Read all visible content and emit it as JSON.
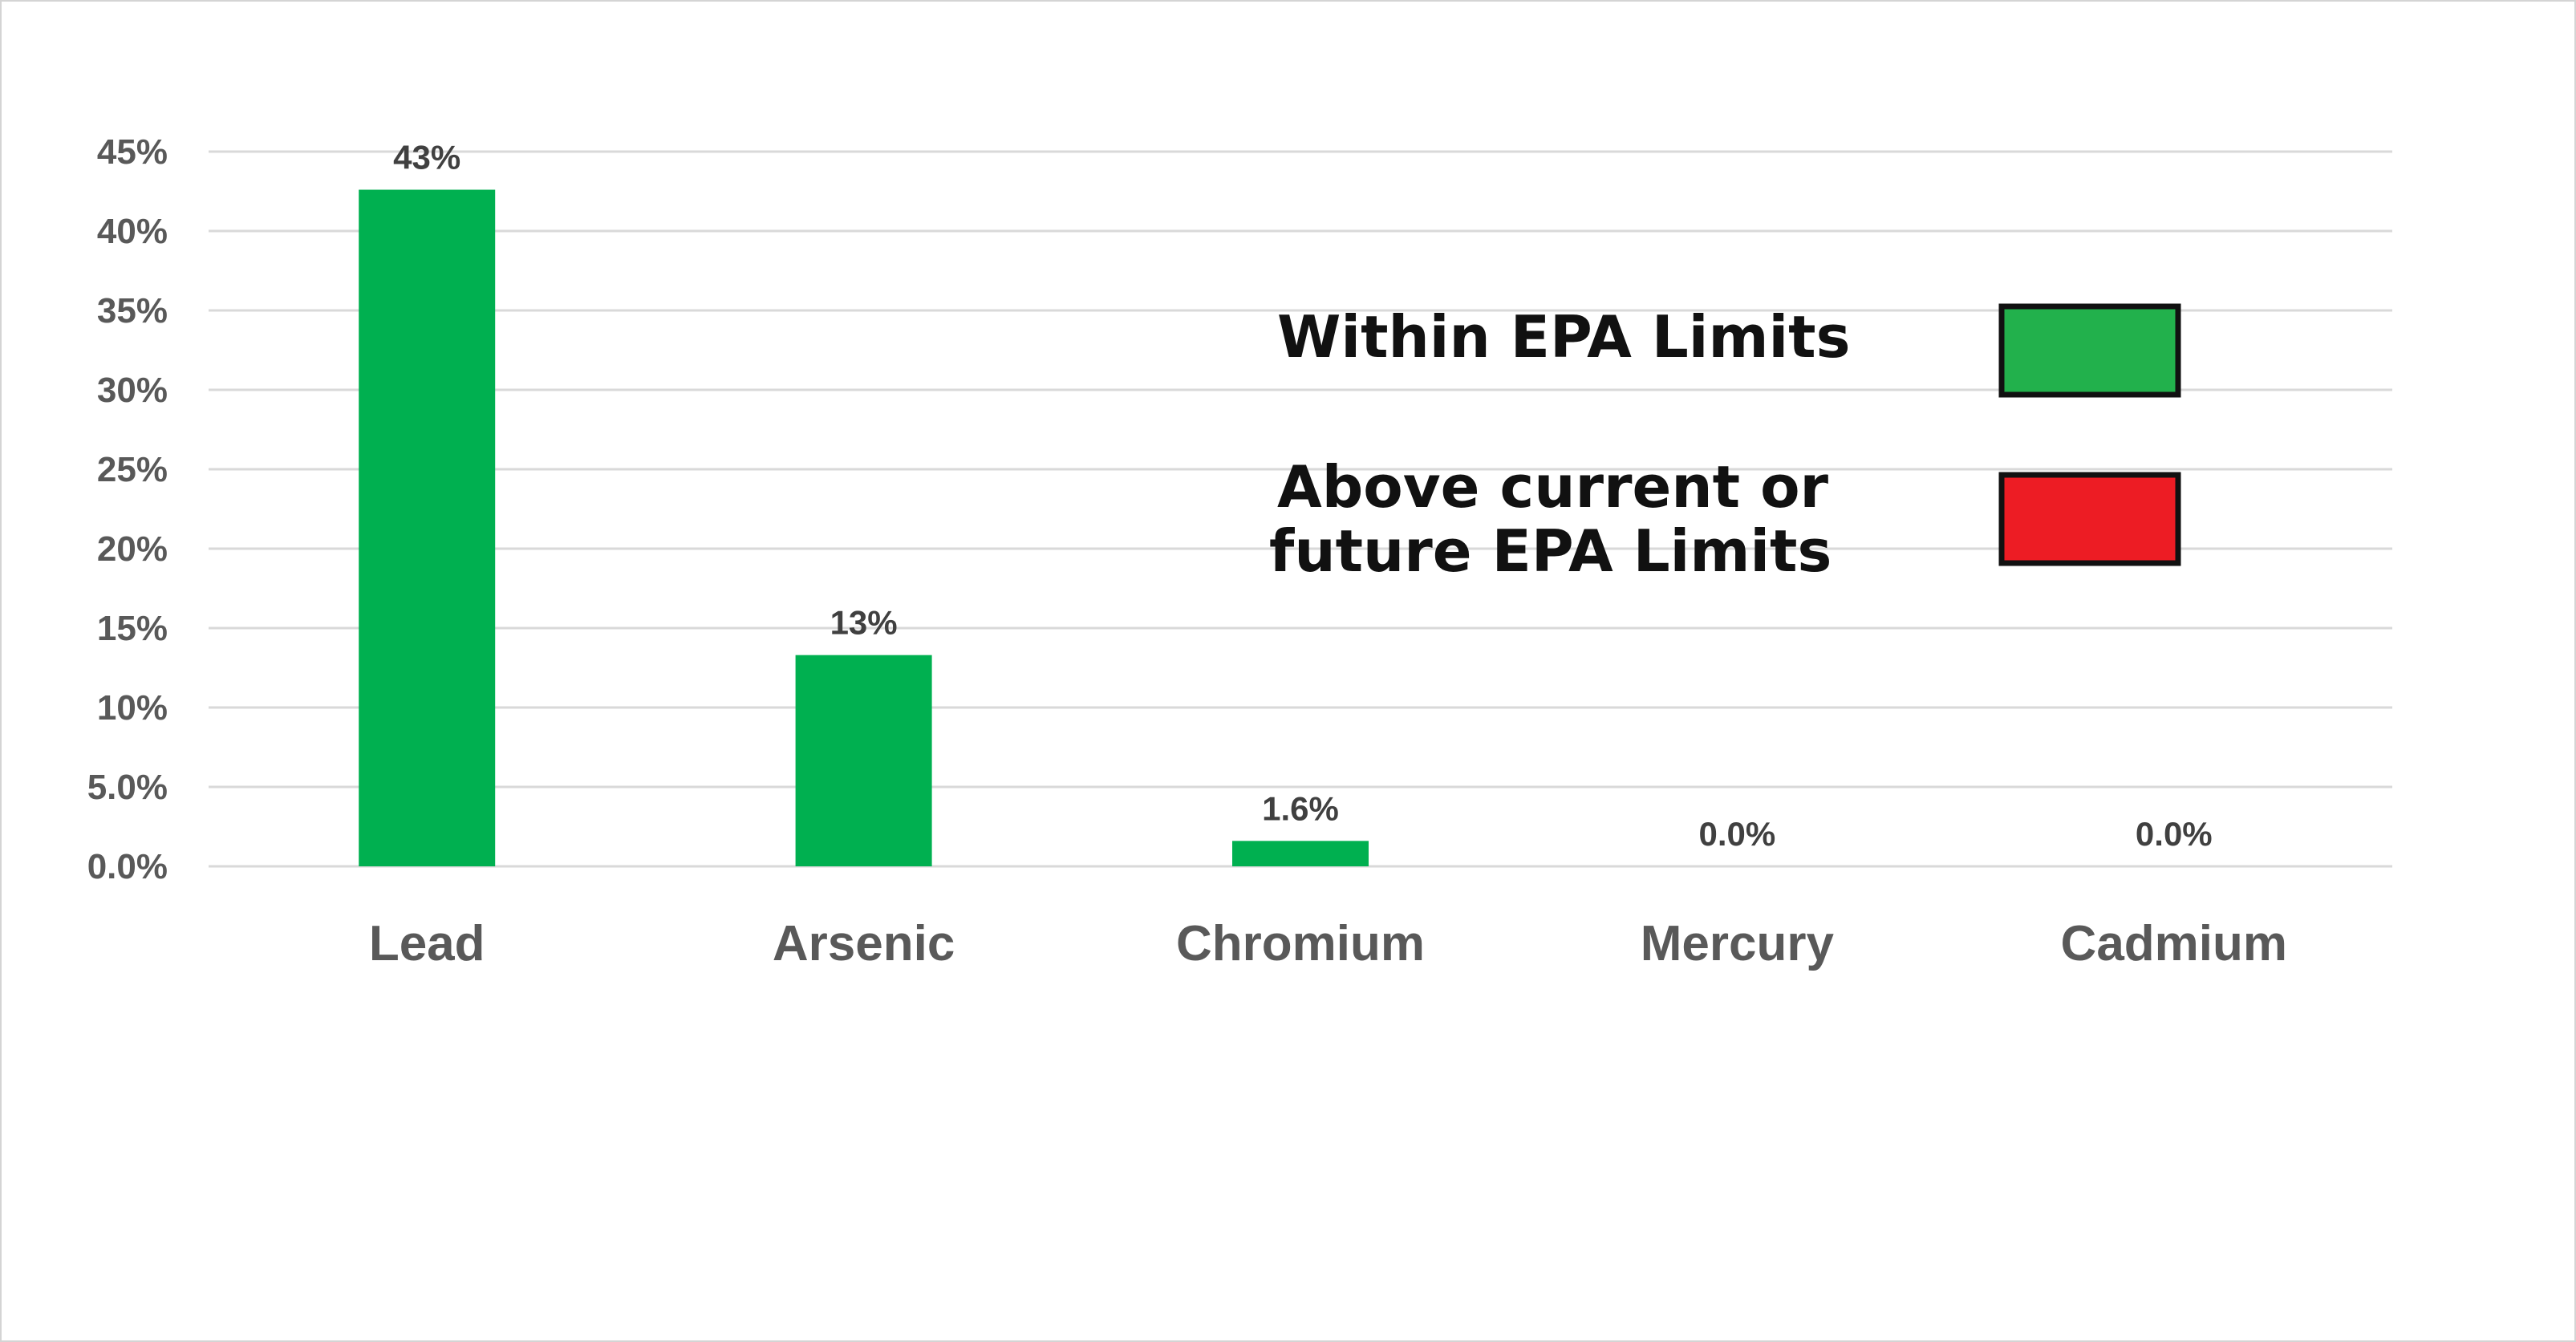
{
  "chart_data": {
    "type": "bar",
    "categories": [
      "Lead",
      "Arsenic",
      "Chromium",
      "Mercury",
      "Cadmium"
    ],
    "values": [
      42.6,
      13.3,
      1.6,
      0.0,
      0.0
    ],
    "data_labels": [
      "43%",
      "13%",
      "1.6%",
      "0.0%",
      "0.0%"
    ],
    "ylim": [
      0,
      45
    ],
    "yticks": [
      0,
      5,
      10,
      15,
      20,
      25,
      30,
      35,
      40,
      45
    ],
    "ytick_labels": [
      "0.0%",
      "5.0%",
      "10%",
      "15%",
      "20%",
      "25%",
      "30%",
      "35%",
      "40%",
      "45%"
    ],
    "grid": true,
    "bar_color": "#00b050",
    "legend": {
      "placement": "center-right",
      "entries": [
        {
          "label_lines": [
            "Within EPA Limits"
          ],
          "color": "#22b14c"
        },
        {
          "label_lines": [
            "Above current or",
            "future EPA Limits"
          ],
          "color": "#ed1c24"
        }
      ]
    }
  }
}
